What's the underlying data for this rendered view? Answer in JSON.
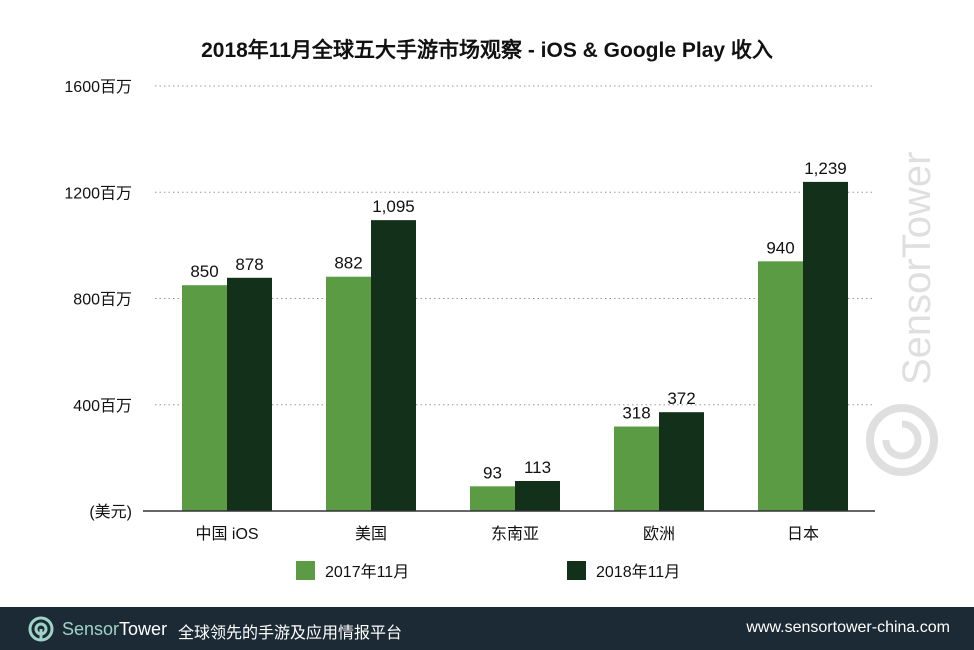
{
  "chart_data": {
    "type": "bar",
    "title": "2018年11月全球五大手游市场观察 - iOS & Google Play 收入",
    "categories": [
      "中国 iOS",
      "美国",
      "东南亚",
      "欧洲",
      "日本"
    ],
    "series": [
      {
        "name": "2017年11月",
        "values": [
          850,
          882,
          93,
          318,
          940
        ],
        "labels": [
          "850",
          "882",
          "93",
          "318",
          "940"
        ],
        "color": "#5b9b44"
      },
      {
        "name": "2018年11月",
        "values": [
          878,
          1095,
          113,
          372,
          1239
        ],
        "labels": [
          "878",
          "1,095",
          "113",
          "372",
          "1,239"
        ],
        "color": "#13301b"
      }
    ],
    "ylim": [
      0,
      1600
    ],
    "yticks": [
      0,
      400,
      800,
      1200,
      1600
    ],
    "ytick_labels": [
      "(美元)",
      "400百万",
      "800百万",
      "1200百万",
      "1600百万"
    ],
    "grid": true,
    "legend": "bottom"
  },
  "watermark": "SensorTower",
  "footer": {
    "brand_prefix": "Sensor",
    "brand_suffix": "Tower",
    "tagline": "全球领先的手游及应用情报平台",
    "url": "www.sensortower-china.com"
  }
}
